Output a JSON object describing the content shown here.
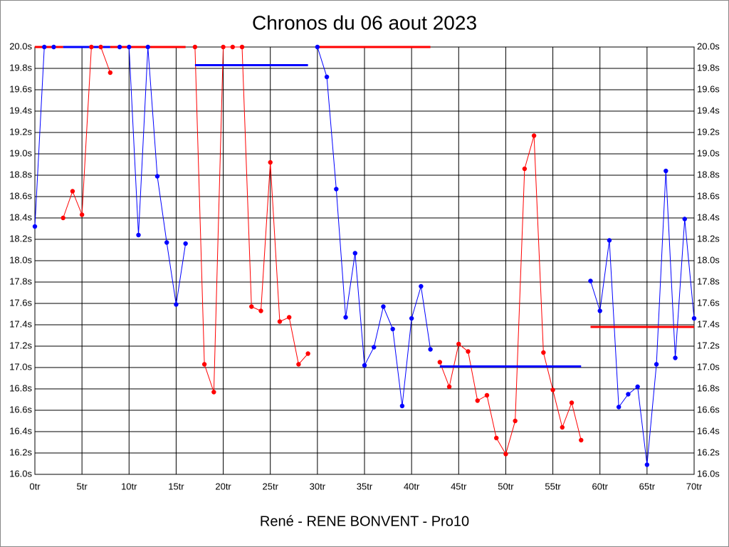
{
  "chart_data": {
    "type": "line",
    "title": "Chronos du 06 aout 2023",
    "footer": "René - RENE BONVENT - Pro10",
    "grid": true,
    "x": [
      0,
      1,
      2,
      3,
      4,
      5,
      6,
      7,
      8,
      9,
      10,
      11,
      12,
      13,
      14,
      15,
      16,
      17,
      18,
      19,
      20,
      21,
      22,
      23,
      24,
      25,
      26,
      27,
      28,
      29,
      30,
      31,
      32,
      33,
      34,
      35,
      36,
      37,
      38,
      39,
      40,
      41,
      42,
      43,
      44,
      45,
      46,
      47,
      48,
      49,
      50,
      51,
      52,
      53,
      54,
      55,
      56,
      57,
      58,
      59,
      60,
      61,
      62,
      63,
      64,
      65,
      66,
      67,
      68,
      69,
      70
    ],
    "series": [
      {
        "color": "#0000ff",
        "values": [
          18.32,
          20.0,
          20.0,
          null,
          null,
          null,
          null,
          null,
          null,
          20.0,
          20.0,
          18.24,
          20.0,
          18.79,
          18.17,
          17.59,
          18.16,
          null,
          null,
          null,
          null,
          null,
          null,
          null,
          null,
          null,
          null,
          null,
          null,
          null,
          20.0,
          19.72,
          18.67,
          17.47,
          18.07,
          17.02,
          17.19,
          17.57,
          17.36,
          16.64,
          17.46,
          17.76,
          17.17,
          null,
          null,
          null,
          null,
          null,
          null,
          null,
          null,
          null,
          null,
          null,
          null,
          null,
          null,
          null,
          null,
          17.81,
          17.53,
          18.19,
          16.63,
          16.75,
          16.82,
          16.09,
          17.03,
          18.84,
          17.09,
          18.39,
          17.46
        ]
      },
      {
        "color": "#ff0000",
        "values": [
          null,
          null,
          null,
          18.4,
          18.65,
          18.43,
          20.0,
          20.0,
          19.76,
          null,
          null,
          null,
          null,
          null,
          null,
          null,
          null,
          20.0,
          17.03,
          16.77,
          20.0,
          20.0,
          20.0,
          17.57,
          17.53,
          18.92,
          17.43,
          17.47,
          17.03,
          17.13,
          null,
          null,
          null,
          null,
          null,
          null,
          null,
          null,
          null,
          null,
          null,
          null,
          null,
          17.05,
          16.82,
          17.22,
          17.15,
          16.69,
          16.74,
          16.34,
          16.19,
          16.5,
          18.86,
          19.17,
          17.14,
          16.79,
          16.44,
          16.67,
          16.32,
          null,
          null,
          null,
          null,
          null,
          null,
          null,
          null,
          null,
          null,
          null,
          null
        ]
      }
    ],
    "reference_lines": [
      {
        "x": [
          0,
          3
        ],
        "value": 20.0,
        "color": "#ff0000"
      },
      {
        "x": [
          3,
          8
        ],
        "value": 20.0,
        "color": "#0000ff"
      },
      {
        "x": [
          8,
          16
        ],
        "value": 20.0,
        "color": "#ff0000"
      },
      {
        "x": [
          17,
          29
        ],
        "value": 19.83,
        "color": "#0000ff"
      },
      {
        "x": [
          30,
          42
        ],
        "value": 20.0,
        "color": "#ff0000"
      },
      {
        "x": [
          43,
          58
        ],
        "value": 17.01,
        "color": "#0000ff"
      },
      {
        "x": [
          59,
          70
        ],
        "value": 17.38,
        "color": "#ff0000"
      }
    ],
    "xlim": [
      0,
      70
    ],
    "xticks": [
      {
        "value": 0,
        "label": "0tr"
      },
      {
        "value": 5,
        "label": "5tr"
      },
      {
        "value": 10,
        "label": "10tr"
      },
      {
        "value": 15,
        "label": "15tr"
      },
      {
        "value": 20,
        "label": "20tr"
      },
      {
        "value": 25,
        "label": "25tr"
      },
      {
        "value": 30,
        "label": "30tr"
      },
      {
        "value": 35,
        "label": "35tr"
      },
      {
        "value": 40,
        "label": "40tr"
      },
      {
        "value": 45,
        "label": "45tr"
      },
      {
        "value": 50,
        "label": "50tr"
      },
      {
        "value": 55,
        "label": "55tr"
      },
      {
        "value": 60,
        "label": "60tr"
      },
      {
        "value": 65,
        "label": "65tr"
      },
      {
        "value": 70,
        "label": "70tr"
      }
    ],
    "ylim": [
      16.0,
      20.0
    ],
    "yticks": [
      {
        "value": 16.0,
        "label": "16.0s"
      },
      {
        "value": 16.2,
        "label": "16.2s"
      },
      {
        "value": 16.4,
        "label": "16.4s"
      },
      {
        "value": 16.6,
        "label": "16.6s"
      },
      {
        "value": 16.8,
        "label": "16.8s"
      },
      {
        "value": 17.0,
        "label": "17.0s"
      },
      {
        "value": 17.2,
        "label": "17.2s"
      },
      {
        "value": 17.4,
        "label": "17.4s"
      },
      {
        "value": 17.6,
        "label": "17.6s"
      },
      {
        "value": 17.8,
        "label": "17.8s"
      },
      {
        "value": 18.0,
        "label": "18.0s"
      },
      {
        "value": 18.2,
        "label": "18.2s"
      },
      {
        "value": 18.4,
        "label": "18.4s"
      },
      {
        "value": 18.6,
        "label": "18.6s"
      },
      {
        "value": 18.8,
        "label": "18.8s"
      },
      {
        "value": 19.0,
        "label": "19.0s"
      },
      {
        "value": 19.2,
        "label": "19.2s"
      },
      {
        "value": 19.4,
        "label": "19.4s"
      },
      {
        "value": 19.6,
        "label": "19.6s"
      },
      {
        "value": 19.8,
        "label": "19.8s"
      },
      {
        "value": 20.0,
        "label": "20.0s"
      }
    ]
  }
}
